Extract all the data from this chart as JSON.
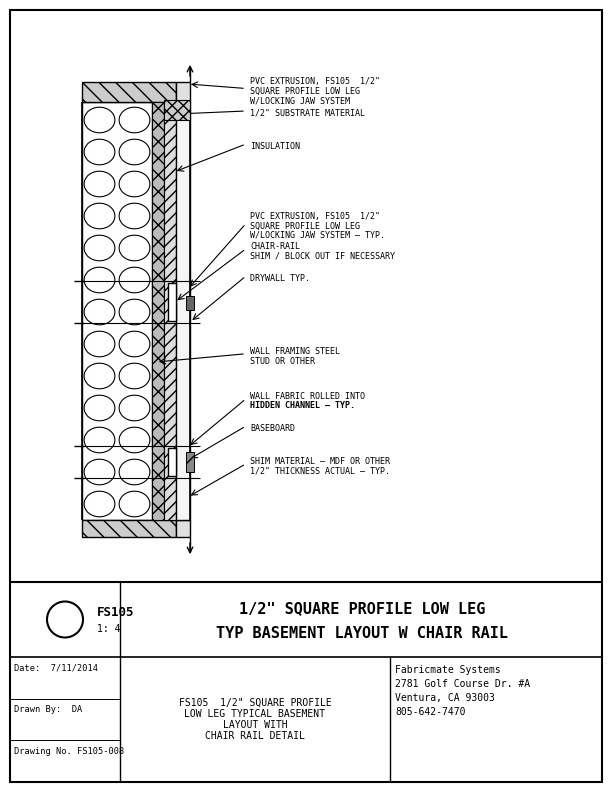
{
  "bg_color": "#ffffff",
  "line_color": "#000000",
  "title_left_bold": "FS105",
  "title_scale": "1: 4",
  "title_right_line1": "1/2\" SQUARE PROFILE LOW LEG",
  "title_right_line2": "TYP BASEMENT LAYOUT W CHAIR RAIL",
  "tb_date": "Date:  7/11/2014",
  "tb_drawnby": "Drawn By:  DA",
  "tb_dwgno": "Drawing No. FS105-008",
  "tb_desc_line1": "FS105  1/2\" SQUARE PROFILE",
  "tb_desc_line2": "LOW LEG TYPICAL BASEMENT",
  "tb_desc_line3": "LAYOUT WITH",
  "tb_desc_line4": "CHAIR RAIL DETAIL",
  "tb_company": "Fabricmate Systems",
  "tb_addr1": "2781 Golf Course Dr. #A",
  "tb_addr2": "Ventura, CA 93003",
  "tb_addr3": "805-642-7470",
  "ann1_lines": [
    "PVC EXTRUSION, FS105  1/2\"",
    "SQUARE PROFILE LOW LEG",
    "W/LOCKING JAW SYSTEM"
  ],
  "ann2_lines": [
    "1/2\" SUBSTRATE MATERIAL"
  ],
  "ann3_lines": [
    "INSULATION"
  ],
  "ann4_lines": [
    "PVC EXTRUSION, FS105  1/2\"",
    "SQUARE PROFILE LOW LEG",
    "W/LOCKING JAW SYSTEM – TYP."
  ],
  "ann5_lines": [
    "CHAIR-RAIL",
    "SHIM / BLOCK OUT IF NECESSARY"
  ],
  "ann6_lines": [
    "DRYWALL TYP."
  ],
  "ann7_lines": [
    "WALL FRAMING STEEL",
    "STUD OR OTHER"
  ],
  "ann8_lines": [
    "WALL FABRIC ROLLED INTO",
    "HIDDEN CHANNEL – TYP."
  ],
  "ann9_lines": [
    "BASEBOARD"
  ],
  "ann10_lines": [
    "SHIM MATERIAL – MDF OR OTHER",
    "1/2\" THICKNESS ACTUAL – TYP."
  ]
}
